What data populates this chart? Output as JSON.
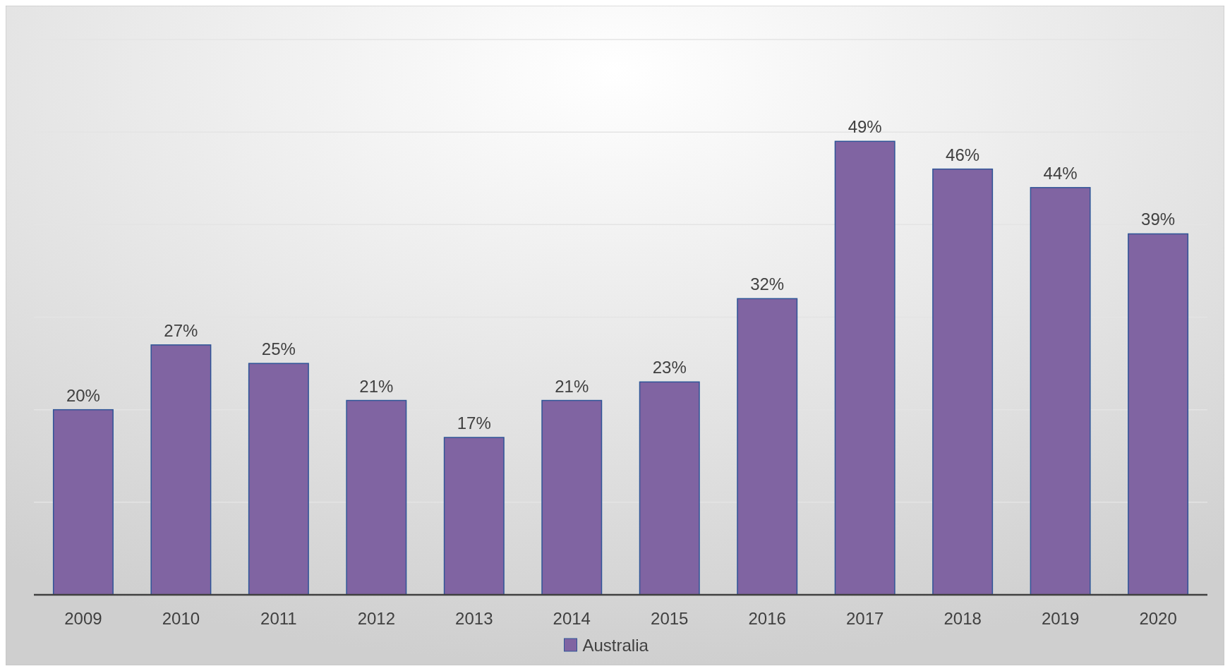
{
  "chart_data": {
    "type": "bar",
    "categories": [
      "2009",
      "2010",
      "2011",
      "2012",
      "2013",
      "2014",
      "2015",
      "2016",
      "2017",
      "2018",
      "2019",
      "2020"
    ],
    "series": [
      {
        "name": "Australia",
        "color": "#8064a2",
        "values": [
          20,
          27,
          25,
          21,
          17,
          21,
          23,
          32,
          49,
          46,
          44,
          39
        ],
        "value_labels": [
          "20%",
          "27%",
          "25%",
          "21%",
          "17%",
          "21%",
          "23%",
          "32%",
          "49%",
          "46%",
          "44%",
          "39%"
        ]
      }
    ],
    "ylim": [
      0,
      60
    ],
    "yticks": [
      {
        "value": 0,
        "label": null
      },
      {
        "value": 10,
        "label": null
      },
      {
        "value": 20,
        "label": null
      },
      {
        "value": 30,
        "label": null
      },
      {
        "value": 40,
        "label": null
      },
      {
        "value": 50,
        "label": null
      },
      {
        "value": 60,
        "label": null
      }
    ],
    "tick_labels": "x",
    "grid": "y",
    "legend": "bottom"
  }
}
